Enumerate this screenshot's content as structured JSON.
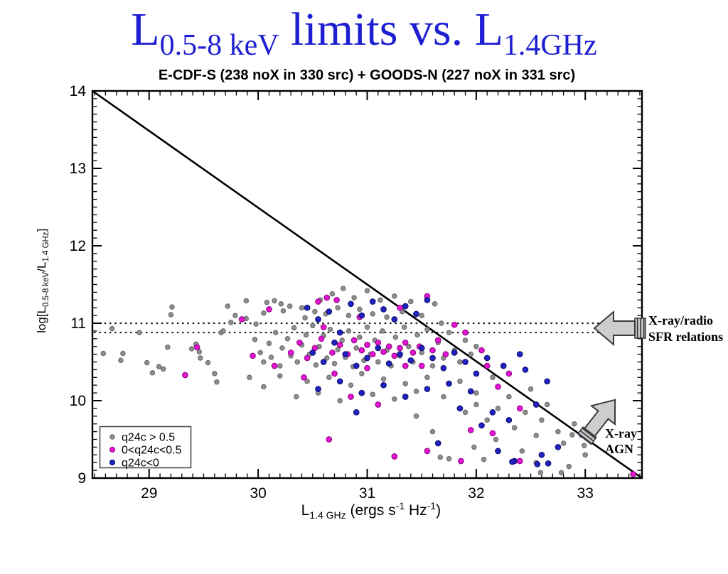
{
  "page": {
    "background": "#ffffff"
  },
  "title": {
    "color": "#1e1ed2",
    "part1": "L",
    "sub1": "0.5-8 keV",
    "part2": " limits vs. L",
    "sub2": "1.4GHz"
  },
  "plot": {
    "subtitle": "E-CDF-S (238 noX in 330 src) + GOODS-N (227 noX in 331 src)",
    "xlabel": {
      "main": "L",
      "sub": "1.4 GHz",
      "mid": " (ergs s",
      "sup1": "-1",
      "mid2": " Hz",
      "sup2": "-1",
      "end": ")"
    },
    "ylabel": {
      "main": "log[L",
      "sub1": "0.5-8 keV",
      "mid": "/L",
      "sub2": "1.4 GHz",
      "end": "]"
    }
  },
  "annotations": {
    "sfr": {
      "line1": "X-ray/radio",
      "line2": "SFR relations",
      "color": "#009933",
      "arrow_fill": "#cdcdcd",
      "arrow_edge": "#3a3a3a"
    },
    "agn": {
      "line1": "X-ray",
      "line2": "AGN",
      "color": "#009933",
      "arrow_fill": "#cdcdcd",
      "arrow_edge": "#3a3a3a"
    }
  },
  "chart_data": {
    "type": "scatter",
    "title": "E-CDF-S (238 noX in 330 src) + GOODS-N (227 noX in 331 src)",
    "xlabel": "L_1.4GHz (ergs s^-1 Hz^-1)",
    "ylabel": "log[L_0.5-8 keV / L_1.4 GHz]",
    "xlim": [
      28.48,
      33.52
    ],
    "ylim": [
      9,
      14
    ],
    "x_major_ticks": [
      29,
      30,
      31,
      32,
      33
    ],
    "y_major_ticks": [
      9,
      10,
      11,
      12,
      13,
      14
    ],
    "minor_tick_step": 0.1,
    "grid": false,
    "legend_position": "lower-left",
    "hlines": [
      11.0,
      10.88
    ],
    "refline": {
      "x1": 28.48,
      "y1": 14,
      "x2": 33.52,
      "y2": 9
    },
    "series": [
      {
        "name": "q24c > 0.5",
        "color": "#8f8f8f",
        "edge": "#6a6a6a",
        "r": 3.2,
        "points": [
          [
            28.58,
            10.61
          ],
          [
            28.66,
            10.93
          ],
          [
            28.74,
            10.52
          ],
          [
            28.76,
            10.61
          ],
          [
            28.91,
            10.88
          ],
          [
            28.98,
            10.49
          ],
          [
            29.03,
            10.36
          ],
          [
            29.09,
            10.44
          ],
          [
            29.13,
            10.41
          ],
          [
            29.21,
            11.21
          ],
          [
            29.2,
            11.11
          ],
          [
            29.17,
            10.69
          ],
          [
            29.39,
            10.67
          ],
          [
            29.43,
            10.73
          ],
          [
            29.46,
            10.63
          ],
          [
            29.47,
            10.55
          ],
          [
            29.54,
            10.49
          ],
          [
            29.6,
            10.35
          ],
          [
            29.62,
            10.24
          ],
          [
            29.66,
            10.88
          ],
          [
            29.68,
            10.9
          ],
          [
            29.72,
            11.22
          ],
          [
            29.75,
            11.01
          ],
          [
            29.79,
            11.1
          ],
          [
            29.89,
            11.29
          ],
          [
            29.89,
            11.06
          ],
          [
            29.97,
            10.79
          ],
          [
            29.98,
            10.99
          ],
          [
            30.05,
            11.13
          ],
          [
            30.08,
            11.27
          ],
          [
            30.15,
            11.29
          ],
          [
            30.21,
            11.25
          ],
          [
            30.23,
            11.16
          ],
          [
            30.29,
            11.22
          ],
          [
            30.4,
            11.2
          ],
          [
            30.43,
            11.07
          ],
          [
            30.02,
            10.62
          ],
          [
            30.05,
            10.5
          ],
          [
            30.1,
            10.74
          ],
          [
            30.12,
            10.56
          ],
          [
            30.16,
            10.88
          ],
          [
            30.2,
            10.45
          ],
          [
            30.22,
            10.68
          ],
          [
            30.27,
            10.8
          ],
          [
            30.3,
            10.58
          ],
          [
            30.33,
            10.94
          ],
          [
            30.36,
            10.5
          ],
          [
            30.4,
            10.72
          ],
          [
            30.44,
            10.85
          ],
          [
            30.47,
            10.6
          ],
          [
            30.5,
            10.97
          ],
          [
            30.53,
            10.46
          ],
          [
            30.56,
            10.7
          ],
          [
            30.6,
            10.84
          ],
          [
            30.63,
            10.55
          ],
          [
            30.66,
            10.92
          ],
          [
            30.7,
            10.48
          ],
          [
            30.73,
            10.66
          ],
          [
            30.77,
            10.78
          ],
          [
            30.8,
            10.56
          ],
          [
            30.83,
            10.9
          ],
          [
            30.87,
            10.44
          ],
          [
            30.9,
            10.68
          ],
          [
            30.93,
            10.82
          ],
          [
            30.97,
            10.52
          ],
          [
            31.0,
            10.95
          ],
          [
            30.52,
            11.15
          ],
          [
            30.57,
            11.3
          ],
          [
            30.62,
            11.12
          ],
          [
            30.68,
            11.38
          ],
          [
            30.73,
            11.2
          ],
          [
            30.78,
            11.45
          ],
          [
            30.83,
            11.1
          ],
          [
            30.88,
            11.33
          ],
          [
            30.93,
            11.18
          ],
          [
            31.0,
            11.42
          ],
          [
            31.05,
            11.12
          ],
          [
            31.12,
            11.3
          ],
          [
            31.18,
            11.08
          ],
          [
            31.25,
            11.35
          ],
          [
            31.32,
            11.15
          ],
          [
            31.4,
            11.28
          ],
          [
            31.5,
            11.1
          ],
          [
            31.62,
            11.25
          ],
          [
            31.68,
            11.0
          ],
          [
            31.03,
            10.6
          ],
          [
            31.07,
            10.78
          ],
          [
            31.1,
            10.5
          ],
          [
            31.14,
            10.9
          ],
          [
            31.18,
            10.65
          ],
          [
            31.22,
            10.45
          ],
          [
            31.26,
            10.82
          ],
          [
            31.3,
            10.58
          ],
          [
            31.34,
            10.95
          ],
          [
            31.38,
            10.7
          ],
          [
            31.42,
            10.5
          ],
          [
            31.46,
            10.85
          ],
          [
            31.5,
            10.62
          ],
          [
            31.55,
            10.92
          ],
          [
            31.6,
            10.45
          ],
          [
            31.65,
            10.75
          ],
          [
            31.7,
            10.55
          ],
          [
            31.75,
            10.88
          ],
          [
            31.8,
            10.65
          ],
          [
            31.85,
            10.5
          ],
          [
            31.9,
            10.78
          ],
          [
            31.95,
            10.6
          ],
          [
            32.0,
            10.7
          ],
          [
            29.92,
            10.3
          ],
          [
            30.05,
            10.18
          ],
          [
            30.2,
            10.32
          ],
          [
            30.35,
            10.05
          ],
          [
            30.45,
            10.25
          ],
          [
            30.55,
            10.1
          ],
          [
            30.65,
            10.3
          ],
          [
            30.75,
            10.0
          ],
          [
            30.85,
            10.2
          ],
          [
            30.95,
            10.35
          ],
          [
            31.05,
            10.08
          ],
          [
            31.15,
            10.28
          ],
          [
            31.25,
            10.02
          ],
          [
            31.35,
            10.22
          ],
          [
            31.45,
            10.12
          ],
          [
            31.55,
            10.3
          ],
          [
            31.7,
            10.05
          ],
          [
            31.85,
            10.25
          ],
          [
            32.0,
            10.1
          ],
          [
            32.15,
            10.3
          ],
          [
            31.9,
            9.85
          ],
          [
            32.0,
            9.95
          ],
          [
            32.1,
            9.75
          ],
          [
            32.2,
            9.9
          ],
          [
            32.3,
            10.05
          ],
          [
            32.35,
            9.65
          ],
          [
            32.45,
            9.85
          ],
          [
            32.5,
            10.15
          ],
          [
            32.55,
            9.55
          ],
          [
            32.6,
            9.75
          ],
          [
            32.65,
            9.95
          ],
          [
            32.75,
            9.6
          ],
          [
            32.8,
            9.45
          ],
          [
            32.9,
            9.7
          ],
          [
            33.0,
            9.3
          ],
          [
            32.42,
            9.35
          ],
          [
            32.18,
            9.5
          ],
          [
            31.98,
            9.4
          ],
          [
            31.75,
            9.25
          ],
          [
            32.55,
            9.2
          ],
          [
            32.85,
            9.15
          ],
          [
            31.6,
            9.6
          ],
          [
            31.45,
            9.8
          ],
          [
            31.67,
            9.27
          ],
          [
            32.07,
            9.24
          ],
          [
            32.59,
            9.07
          ],
          [
            32.78,
            9.07
          ],
          [
            32.88,
            9.56
          ],
          [
            32.99,
            9.42
          ]
        ]
      },
      {
        "name": "0<q24c<0.5",
        "color": "#e514d2",
        "edge": "#8f0a84",
        "r": 3.8,
        "points": [
          [
            29.44,
            10.69
          ],
          [
            29.33,
            10.33
          ],
          [
            29.85,
            11.05
          ],
          [
            30.1,
            11.18
          ],
          [
            30.3,
            10.62
          ],
          [
            30.38,
            10.75
          ],
          [
            30.45,
            10.55
          ],
          [
            30.52,
            10.68
          ],
          [
            30.58,
            10.8
          ],
          [
            30.63,
            11.33
          ],
          [
            30.72,
            11.3
          ],
          [
            30.55,
            11.28
          ],
          [
            30.6,
            10.95
          ],
          [
            30.68,
            10.62
          ],
          [
            30.75,
            10.72
          ],
          [
            30.82,
            10.6
          ],
          [
            30.88,
            10.78
          ],
          [
            30.95,
            10.65
          ],
          [
            31.0,
            10.72
          ],
          [
            31.05,
            10.6
          ],
          [
            31.1,
            10.75
          ],
          [
            31.15,
            10.63
          ],
          [
            31.2,
            10.7
          ],
          [
            31.25,
            10.58
          ],
          [
            31.3,
            10.68
          ],
          [
            31.35,
            10.75
          ],
          [
            31.42,
            10.62
          ],
          [
            31.48,
            10.7
          ],
          [
            31.55,
            11.35
          ],
          [
            31.3,
            11.2
          ],
          [
            30.93,
            11.08
          ],
          [
            31.6,
            10.65
          ],
          [
            31.65,
            10.78
          ],
          [
            31.72,
            10.6
          ],
          [
            31.5,
            10.45
          ],
          [
            31.0,
            10.42
          ],
          [
            30.7,
            10.35
          ],
          [
            30.42,
            10.3
          ],
          [
            30.15,
            10.45
          ],
          [
            29.95,
            10.58
          ],
          [
            30.85,
            10.05
          ],
          [
            31.1,
            9.95
          ],
          [
            31.35,
            10.45
          ],
          [
            31.9,
            10.88
          ],
          [
            32.05,
            10.65
          ],
          [
            31.8,
            10.98
          ],
          [
            32.1,
            10.45
          ],
          [
            32.3,
            10.35
          ],
          [
            32.2,
            10.18
          ],
          [
            31.95,
            9.62
          ],
          [
            32.15,
            9.58
          ],
          [
            32.4,
            9.9
          ],
          [
            31.55,
            9.35
          ],
          [
            31.25,
            9.28
          ],
          [
            30.65,
            9.5
          ],
          [
            33.44,
            9.05
          ],
          [
            31.86,
            9.22
          ],
          [
            32.4,
            9.22
          ]
        ]
      },
      {
        "name": "q24c<0",
        "color": "#2222c4",
        "edge": "#10106e",
        "r": 3.8,
        "points": [
          [
            30.45,
            11.2
          ],
          [
            30.55,
            11.05
          ],
          [
            30.65,
            11.15
          ],
          [
            30.75,
            10.88
          ],
          [
            30.85,
            11.25
          ],
          [
            30.95,
            11.1
          ],
          [
            31.05,
            11.28
          ],
          [
            31.15,
            11.18
          ],
          [
            31.25,
            11.05
          ],
          [
            31.35,
            11.22
          ],
          [
            31.45,
            11.12
          ],
          [
            31.55,
            11.3
          ],
          [
            30.5,
            10.62
          ],
          [
            30.6,
            10.5
          ],
          [
            30.7,
            10.75
          ],
          [
            30.8,
            10.6
          ],
          [
            30.9,
            10.45
          ],
          [
            31.0,
            10.55
          ],
          [
            31.1,
            10.68
          ],
          [
            31.2,
            10.48
          ],
          [
            31.3,
            10.6
          ],
          [
            31.4,
            10.52
          ],
          [
            31.5,
            10.68
          ],
          [
            31.6,
            10.55
          ],
          [
            31.7,
            10.42
          ],
          [
            31.8,
            10.62
          ],
          [
            31.9,
            10.5
          ],
          [
            32.0,
            10.35
          ],
          [
            30.55,
            10.15
          ],
          [
            30.75,
            10.25
          ],
          [
            30.95,
            10.1
          ],
          [
            31.15,
            10.2
          ],
          [
            31.35,
            10.05
          ],
          [
            31.55,
            10.15
          ],
          [
            31.75,
            10.22
          ],
          [
            31.95,
            10.12
          ],
          [
            32.1,
            10.55
          ],
          [
            32.25,
            10.45
          ],
          [
            32.45,
            10.4
          ],
          [
            32.15,
            9.85
          ],
          [
            32.3,
            9.75
          ],
          [
            32.55,
            9.95
          ],
          [
            32.65,
            10.25
          ],
          [
            32.4,
            10.6
          ],
          [
            31.85,
            9.9
          ],
          [
            32.05,
            9.68
          ],
          [
            32.2,
            9.35
          ],
          [
            32.35,
            9.22
          ],
          [
            32.6,
            9.3
          ],
          [
            32.75,
            9.4
          ],
          [
            31.65,
            9.45
          ],
          [
            30.9,
            9.85
          ],
          [
            32.97,
            9.56
          ],
          [
            32.33,
            9.21
          ],
          [
            32.56,
            9.18
          ],
          [
            32.66,
            9.19
          ]
        ]
      }
    ]
  }
}
